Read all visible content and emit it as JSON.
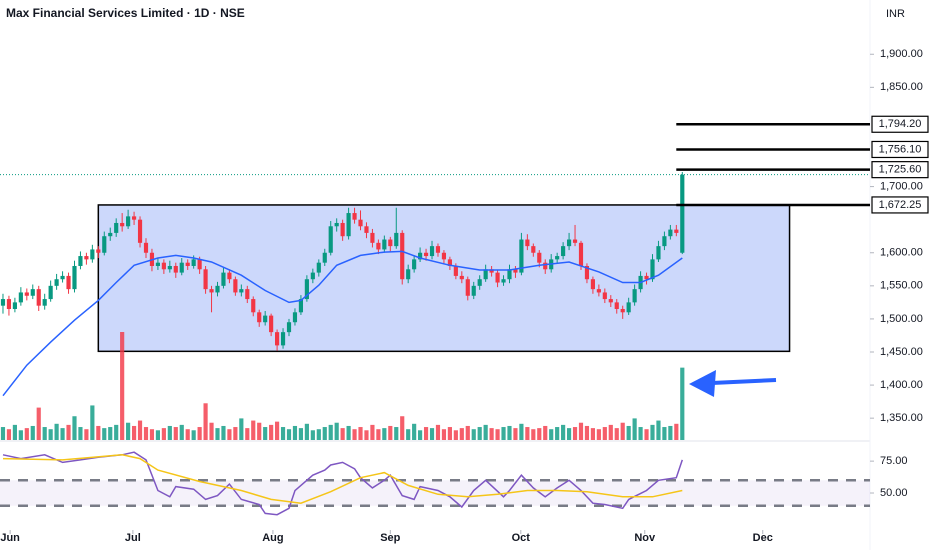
{
  "chart_data": {
    "type": "candlestick",
    "title": "Max Financial Services Limited · 1D · NSE",
    "currency": "INR",
    "up_color": "#089981",
    "down_color": "#f23645",
    "xlim": [
      -0.5,
      145.5
    ],
    "xticks": [
      {
        "value": 1.2,
        "label": "Jun"
      },
      {
        "value": 21.8,
        "label": "Jul"
      },
      {
        "value": 45.3,
        "label": "Aug"
      },
      {
        "value": 65,
        "label": "Sep"
      },
      {
        "value": 86.9,
        "label": "Oct"
      },
      {
        "value": 107.7,
        "label": "Nov"
      },
      {
        "value": 127.5,
        "label": "Dec"
      }
    ],
    "ylim": [
      1317,
      1982
    ],
    "yticks": [
      {
        "value": 1900,
        "label": "1,900.00"
      },
      {
        "value": 1850,
        "label": "1,850.00"
      },
      {
        "value": 1700,
        "label": "1,700.00"
      },
      {
        "value": 1600,
        "label": "1,600.00"
      },
      {
        "value": 1550,
        "label": "1,550.00"
      },
      {
        "value": 1500,
        "label": "1,500.00"
      },
      {
        "value": 1450,
        "label": "1,450.00"
      },
      {
        "value": 1400,
        "label": "1,400.00"
      },
      {
        "value": 1350,
        "label": "1,350.00"
      }
    ],
    "ohlc": [
      [
        1520,
        1538,
        1508,
        1530
      ],
      [
        1530,
        1535,
        1505,
        1515
      ],
      [
        1515,
        1532,
        1510,
        1525
      ],
      [
        1525,
        1548,
        1520,
        1540
      ],
      [
        1540,
        1546,
        1528,
        1535
      ],
      [
        1535,
        1552,
        1530,
        1545
      ],
      [
        1545,
        1550,
        1512,
        1520
      ],
      [
        1520,
        1538,
        1514,
        1530
      ],
      [
        1530,
        1558,
        1526,
        1550
      ],
      [
        1550,
        1568,
        1544,
        1560
      ],
      [
        1560,
        1572,
        1555,
        1565
      ],
      [
        1565,
        1570,
        1538,
        1545
      ],
      [
        1545,
        1588,
        1540,
        1580
      ],
      [
        1580,
        1602,
        1575,
        1595
      ],
      [
        1595,
        1600,
        1582,
        1590
      ],
      [
        1590,
        1612,
        1585,
        1605
      ],
      [
        1605,
        1610,
        1592,
        1600
      ],
      [
        1600,
        1632,
        1596,
        1625
      ],
      [
        1625,
        1638,
        1618,
        1630
      ],
      [
        1630,
        1652,
        1624,
        1645
      ],
      [
        1645,
        1660,
        1632,
        1640
      ],
      [
        1640,
        1665,
        1636,
        1655
      ],
      [
        1655,
        1662,
        1642,
        1650
      ],
      [
        1650,
        1655,
        1608,
        1615
      ],
      [
        1615,
        1622,
        1592,
        1600
      ],
      [
        1600,
        1606,
        1572,
        1580
      ],
      [
        1580,
        1592,
        1574,
        1585
      ],
      [
        1585,
        1590,
        1568,
        1575
      ],
      [
        1575,
        1588,
        1570,
        1580
      ],
      [
        1580,
        1585,
        1562,
        1570
      ],
      [
        1570,
        1592,
        1566,
        1585
      ],
      [
        1585,
        1590,
        1574,
        1580
      ],
      [
        1580,
        1596,
        1576,
        1590
      ],
      [
        1590,
        1594,
        1568,
        1575
      ],
      [
        1575,
        1580,
        1538,
        1545
      ],
      [
        1545,
        1550,
        1510,
        1540
      ],
      [
        1540,
        1556,
        1534,
        1550
      ],
      [
        1550,
        1578,
        1546,
        1570
      ],
      [
        1570,
        1575,
        1554,
        1560
      ],
      [
        1560,
        1564,
        1535,
        1540
      ],
      [
        1540,
        1552,
        1534,
        1545
      ],
      [
        1545,
        1550,
        1524,
        1530
      ],
      [
        1530,
        1534,
        1504,
        1510
      ],
      [
        1510,
        1514,
        1488,
        1495
      ],
      [
        1495,
        1512,
        1490,
        1505
      ],
      [
        1505,
        1508,
        1474,
        1480
      ],
      [
        1480,
        1484,
        1452,
        1460
      ],
      [
        1460,
        1486,
        1455,
        1480
      ],
      [
        1480,
        1500,
        1474,
        1495
      ],
      [
        1495,
        1516,
        1490,
        1510
      ],
      [
        1510,
        1536,
        1506,
        1530
      ],
      [
        1530,
        1566,
        1526,
        1560
      ],
      [
        1560,
        1576,
        1554,
        1570
      ],
      [
        1570,
        1590,
        1564,
        1585
      ],
      [
        1585,
        1606,
        1580,
        1600
      ],
      [
        1600,
        1648,
        1596,
        1640
      ],
      [
        1640,
        1652,
        1632,
        1645
      ],
      [
        1645,
        1650,
        1618,
        1625
      ],
      [
        1625,
        1668,
        1620,
        1660
      ],
      [
        1660,
        1668,
        1644,
        1650
      ],
      [
        1650,
        1664,
        1634,
        1640
      ],
      [
        1640,
        1646,
        1622,
        1630
      ],
      [
        1630,
        1636,
        1608,
        1615
      ],
      [
        1615,
        1620,
        1598,
        1605
      ],
      [
        1605,
        1626,
        1600,
        1620
      ],
      [
        1620,
        1624,
        1602,
        1610
      ],
      [
        1610,
        1668,
        1606,
        1630
      ],
      [
        1630,
        1634,
        1552,
        1560
      ],
      [
        1560,
        1582,
        1554,
        1575
      ],
      [
        1575,
        1596,
        1570,
        1590
      ],
      [
        1590,
        1608,
        1586,
        1600
      ],
      [
        1600,
        1606,
        1588,
        1595
      ],
      [
        1595,
        1618,
        1590,
        1610
      ],
      [
        1610,
        1614,
        1594,
        1600
      ],
      [
        1600,
        1604,
        1584,
        1590
      ],
      [
        1590,
        1594,
        1574,
        1580
      ],
      [
        1580,
        1584,
        1560,
        1565
      ],
      [
        1565,
        1572,
        1554,
        1560
      ],
      [
        1560,
        1564,
        1528,
        1535
      ],
      [
        1535,
        1556,
        1530,
        1550
      ],
      [
        1550,
        1566,
        1544,
        1560
      ],
      [
        1560,
        1582,
        1556,
        1575
      ],
      [
        1575,
        1580,
        1564,
        1570
      ],
      [
        1570,
        1574,
        1548,
        1555
      ],
      [
        1555,
        1566,
        1550,
        1560
      ],
      [
        1560,
        1582,
        1554,
        1575
      ],
      [
        1575,
        1580,
        1562,
        1570
      ],
      [
        1570,
        1630,
        1566,
        1620
      ],
      [
        1620,
        1628,
        1604,
        1610
      ],
      [
        1610,
        1614,
        1594,
        1600
      ],
      [
        1600,
        1604,
        1578,
        1585
      ],
      [
        1585,
        1590,
        1568,
        1575
      ],
      [
        1575,
        1598,
        1570,
        1590
      ],
      [
        1590,
        1600,
        1584,
        1595
      ],
      [
        1595,
        1616,
        1590,
        1610
      ],
      [
        1610,
        1630,
        1604,
        1620
      ],
      [
        1620,
        1642,
        1610,
        1615
      ],
      [
        1615,
        1618,
        1574,
        1580
      ],
      [
        1580,
        1584,
        1554,
        1560
      ],
      [
        1560,
        1564,
        1538,
        1545
      ],
      [
        1545,
        1552,
        1534,
        1540
      ],
      [
        1540,
        1546,
        1524,
        1530
      ],
      [
        1530,
        1536,
        1518,
        1525
      ],
      [
        1525,
        1530,
        1508,
        1515
      ],
      [
        1515,
        1520,
        1500,
        1510
      ],
      [
        1510,
        1532,
        1506,
        1525
      ],
      [
        1525,
        1552,
        1520,
        1545
      ],
      [
        1545,
        1572,
        1540,
        1565
      ],
      [
        1565,
        1570,
        1552,
        1560
      ],
      [
        1560,
        1598,
        1556,
        1590
      ],
      [
        1590,
        1618,
        1586,
        1610
      ],
      [
        1610,
        1632,
        1604,
        1625
      ],
      [
        1625,
        1642,
        1620,
        1635
      ],
      [
        1635,
        1642,
        1625,
        1630
      ],
      [
        1600,
        1722,
        1598,
        1718
      ]
    ],
    "volume": {
      "ylim": [
        0,
        100
      ],
      "values": [
        12,
        10,
        14,
        9,
        11,
        13,
        30,
        12,
        10,
        15,
        11,
        14,
        22,
        12,
        10,
        32,
        13,
        11,
        12,
        14,
        100,
        16,
        13,
        18,
        12,
        10,
        9,
        11,
        13,
        12,
        14,
        10,
        9,
        12,
        34,
        16,
        11,
        13,
        10,
        12,
        20,
        11,
        18,
        16,
        12,
        14,
        17,
        12,
        10,
        13,
        11,
        15,
        9,
        10,
        12,
        14,
        16,
        11,
        13,
        10,
        12,
        9,
        14,
        10,
        11,
        13,
        12,
        22,
        10,
        15,
        9,
        12,
        11,
        14,
        10,
        12,
        9,
        11,
        13,
        10,
        12,
        14,
        11,
        10,
        12,
        13,
        11,
        15,
        12,
        10,
        11,
        13,
        10,
        12,
        14,
        11,
        12,
        16,
        13,
        11,
        10,
        12,
        14,
        11,
        16,
        13,
        20,
        12,
        10,
        14,
        18,
        12,
        13,
        15,
        67
      ]
    },
    "ma": {
      "color": "#2962ff",
      "x": [
        0,
        4,
        8,
        12,
        16,
        19,
        22,
        26,
        29,
        32,
        35,
        40,
        44,
        48,
        50,
        53,
        56,
        60,
        64,
        67,
        70,
        75,
        80,
        85,
        90,
        95,
        100,
        104,
        107,
        110,
        114
      ],
      "values": [
        1384,
        1430,
        1465,
        1498,
        1528,
        1555,
        1581,
        1592,
        1596,
        1592,
        1586,
        1566,
        1543,
        1525,
        1528,
        1551,
        1581,
        1596,
        1601,
        1602,
        1592,
        1581,
        1574,
        1574,
        1581,
        1586,
        1571,
        1555,
        1555,
        1566,
        1592
      ]
    },
    "levels": [
      {
        "value": 1794.2,
        "label": "1,794.20"
      },
      {
        "value": 1756.1,
        "label": "1,756.10"
      },
      {
        "value": 1725.6,
        "label": "1,725.60"
      },
      {
        "value": 1672.25,
        "label": "1,672.25"
      }
    ],
    "box": {
      "color": "#c6d4fb",
      "x": [
        16,
        132
      ],
      "y": [
        1451,
        1672.25
      ]
    },
    "rsi": {
      "ylim": [
        21,
        90
      ],
      "yticks": [
        {
          "value": 75,
          "label": "75.00"
        },
        {
          "value": 50,
          "label": "50.00"
        }
      ],
      "bands": [
        60,
        40
      ],
      "series": [
        {
          "color": "#7e57c2",
          "x": [
            0,
            3,
            7,
            10,
            13,
            16,
            20,
            22,
            24,
            26,
            28,
            29,
            32,
            34,
            36,
            38,
            40,
            43,
            44,
            46,
            48,
            49,
            52,
            54,
            55,
            57,
            59,
            60,
            62,
            64,
            65,
            67,
            69,
            70,
            73,
            75,
            77,
            79,
            81,
            84,
            85,
            87,
            89,
            91,
            93,
            95,
            97,
            99,
            101,
            104,
            105,
            108,
            110,
            113,
            114
          ],
          "values": [
            80,
            77,
            80,
            74,
            76,
            78,
            80,
            82,
            76,
            52,
            47,
            55,
            53,
            45,
            48,
            57,
            45,
            41,
            34,
            33,
            38,
            52,
            64,
            68,
            72,
            74,
            69,
            62,
            54,
            60,
            64,
            48,
            45,
            55,
            52,
            47,
            39,
            52,
            60,
            47,
            52,
            64,
            54,
            47,
            54,
            60,
            52,
            42,
            41,
            38,
            45,
            52,
            60,
            62,
            76
          ]
        },
        {
          "color": "#f5c518",
          "x": [
            0,
            10,
            20,
            23,
            26,
            33,
            40,
            45,
            50,
            55,
            60,
            64,
            68,
            73,
            78,
            83,
            88,
            93,
            98,
            104,
            109,
            114
          ],
          "values": [
            77,
            76,
            80,
            77,
            68,
            59,
            52,
            45,
            42,
            51,
            62,
            66,
            56,
            49,
            47,
            49,
            52,
            52,
            51,
            47,
            47,
            52
          ]
        }
      ]
    }
  }
}
